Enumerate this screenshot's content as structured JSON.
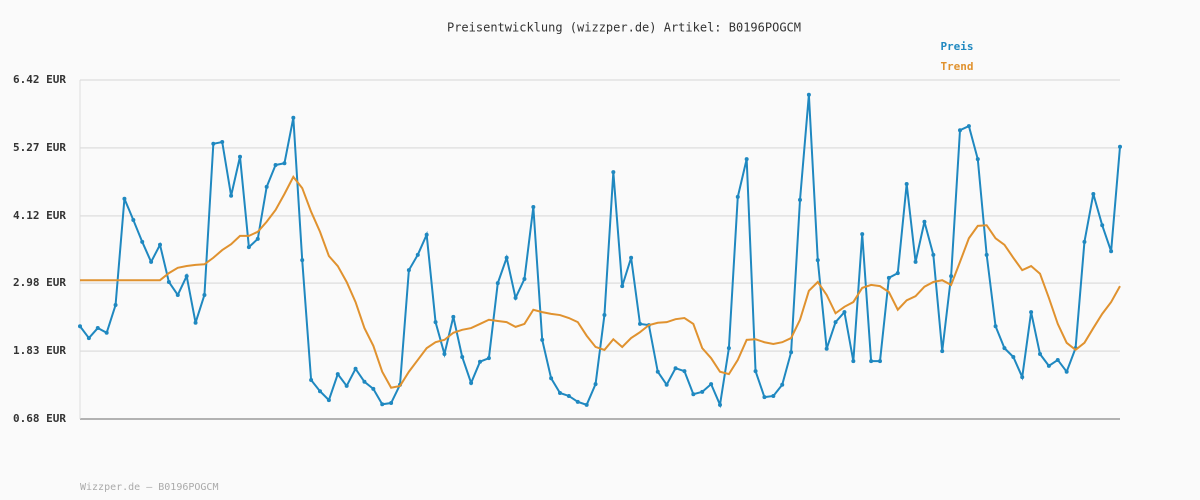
{
  "chart_data": {
    "type": "line",
    "title": "Preisentwicklung (wizzper.de) Artikel: B0196POGCM",
    "footer": "Wizzper.de – B0196POGCM",
    "categories": [
      null,
      null,
      null,
      null,
      null,
      null,
      null,
      null,
      null,
      null,
      null,
      null,
      null,
      null,
      null,
      null,
      null,
      null,
      null,
      null,
      null,
      null,
      null,
      null,
      null,
      null,
      null,
      null,
      null,
      null,
      null,
      null,
      null,
      null,
      null,
      null,
      null,
      null,
      null,
      null,
      null,
      null,
      null,
      null,
      null,
      null,
      null,
      null,
      null,
      null,
      null,
      null,
      null,
      null,
      null,
      null,
      null,
      null,
      null,
      null,
      null,
      null,
      null,
      null,
      null,
      null,
      null,
      null,
      null,
      null,
      null,
      null,
      null,
      null,
      null,
      null,
      null,
      null,
      null,
      null,
      null,
      null,
      null,
      null,
      null,
      null,
      null,
      null,
      null,
      null,
      null,
      null,
      null,
      null,
      null,
      null,
      null,
      null,
      null,
      null,
      null,
      null,
      null,
      null,
      null,
      null,
      null,
      null,
      null,
      null,
      null,
      null,
      null,
      null,
      null,
      null,
      null,
      null
    ],
    "series": [
      {
        "name": "Preis",
        "color": "#1f88c0",
        "markers": true,
        "values": [
          2.25,
          2.05,
          2.22,
          2.14,
          2.61,
          4.41,
          4.05,
          3.68,
          3.34,
          3.63,
          3.0,
          2.78,
          3.1,
          2.31,
          2.78,
          5.34,
          5.37,
          4.46,
          5.12,
          3.59,
          3.73,
          4.61,
          4.98,
          5.01,
          5.78,
          3.37,
          1.34,
          1.15,
          1.0,
          1.44,
          1.24,
          1.53,
          1.31,
          1.19,
          0.93,
          0.95,
          1.26,
          3.2,
          3.46,
          3.8,
          2.32,
          1.78,
          2.41,
          1.73,
          1.29,
          1.65,
          1.71,
          2.98,
          3.41,
          2.73,
          3.05,
          4.27,
          2.02,
          1.37,
          1.12,
          1.07,
          0.97,
          0.92,
          1.27,
          2.44,
          4.86,
          2.93,
          3.41,
          2.29,
          2.27,
          1.48,
          1.26,
          1.54,
          1.49,
          1.1,
          1.14,
          1.27,
          0.92,
          1.88,
          4.44,
          5.08,
          1.49,
          1.05,
          1.07,
          1.26,
          1.81,
          4.39,
          6.17,
          3.37,
          1.87,
          2.32,
          2.49,
          1.66,
          3.81,
          1.66,
          1.66,
          3.07,
          3.15,
          4.66,
          3.34,
          4.02,
          3.46,
          1.83,
          3.1,
          5.57,
          5.64,
          5.08,
          3.46,
          2.25,
          1.88,
          1.73,
          1.39,
          2.49,
          1.78,
          1.58,
          1.68,
          1.48,
          1.88,
          3.68,
          4.49,
          3.96,
          3.52,
          5.29
        ]
      },
      {
        "name": "Trend",
        "color": "#e0922f",
        "markers": false,
        "values": [
          3.03,
          3.03,
          3.03,
          3.03,
          3.03,
          3.03,
          3.03,
          3.03,
          3.03,
          3.03,
          3.15,
          3.24,
          3.27,
          3.29,
          3.3,
          3.41,
          3.54,
          3.64,
          3.78,
          3.78,
          3.85,
          4.02,
          4.22,
          4.49,
          4.78,
          4.59,
          4.19,
          3.85,
          3.44,
          3.27,
          3.0,
          2.66,
          2.22,
          1.92,
          1.48,
          1.21,
          1.24,
          1.48,
          1.68,
          1.88,
          1.98,
          2.02,
          2.14,
          2.19,
          2.22,
          2.29,
          2.36,
          2.34,
          2.32,
          2.24,
          2.29,
          2.53,
          2.49,
          2.46,
          2.44,
          2.39,
          2.32,
          2.09,
          1.9,
          1.85,
          2.03,
          1.9,
          2.05,
          2.15,
          2.27,
          2.31,
          2.32,
          2.37,
          2.39,
          2.29,
          1.88,
          1.71,
          1.48,
          1.44,
          1.68,
          2.02,
          2.03,
          1.98,
          1.95,
          1.98,
          2.05,
          2.36,
          2.85,
          3.0,
          2.78,
          2.47,
          2.58,
          2.66,
          2.9,
          2.95,
          2.93,
          2.83,
          2.53,
          2.69,
          2.76,
          2.92,
          3.0,
          3.03,
          2.95,
          3.34,
          3.74,
          3.95,
          3.96,
          3.74,
          3.63,
          3.41,
          3.2,
          3.27,
          3.14,
          2.73,
          2.29,
          1.97,
          1.85,
          1.97,
          2.22,
          2.46,
          2.66,
          2.93
        ]
      }
    ],
    "ylim": [
      0.68,
      6.42
    ],
    "yticks": [
      {
        "value": 0.68,
        "label": "0.68 EUR"
      },
      {
        "value": 1.83,
        "label": "1.83 EUR"
      },
      {
        "value": 2.98,
        "label": "2.98 EUR"
      },
      {
        "value": 4.12,
        "label": "4.12 EUR"
      },
      {
        "value": 5.27,
        "label": "5.27 EUR"
      },
      {
        "value": 6.42,
        "label": "6.42 EUR"
      }
    ],
    "grid": true,
    "legend": "top-right"
  }
}
